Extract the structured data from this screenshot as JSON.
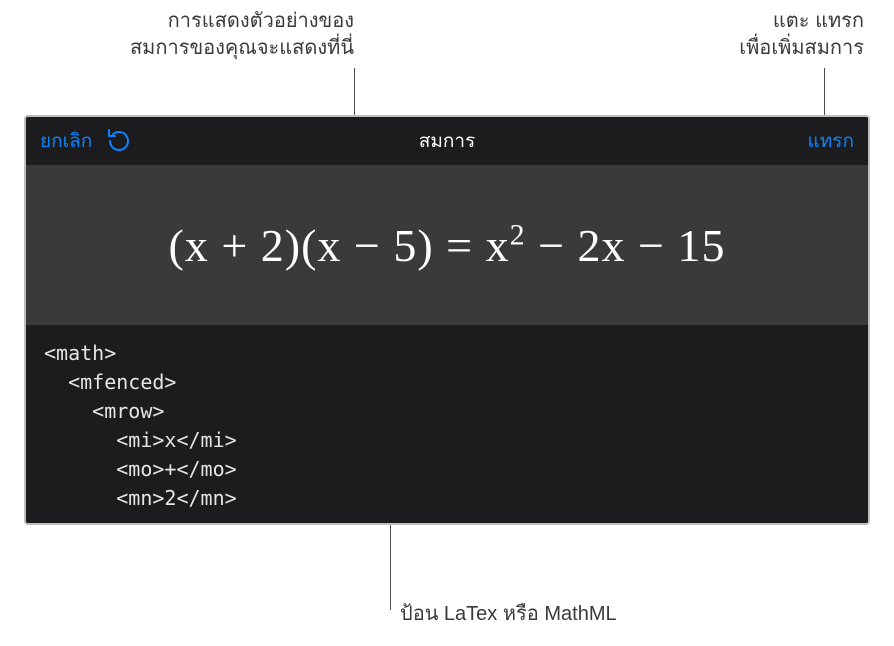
{
  "callouts": {
    "previewNote": "การแสดงตัวอย่างของ\nสมการของคุณจะแสดงที่นี่",
    "insertNote": "แตะ แทรก\nเพื่อเพิ่มสมการ",
    "inputNote": "ป้อน LaTex หรือ MathML"
  },
  "dialog": {
    "cancelLabel": "ยกเลิก",
    "titleLabel": "สมการ",
    "insertLabel": "แทรก",
    "undoIconName": "undo-icon"
  },
  "preview": {
    "equationHTML": "(x + 2)(x − 5) = x<sup>2</sup> − 2x − 15"
  },
  "code": {
    "text": "<math>\n  <mfenced>\n    <mrow>\n      <mi>x</mi>\n      <mo>+</mo>\n      <mn>2</mn>"
  },
  "colors": {
    "accent": "#0a84ff",
    "dialogBg": "#2c2c2e",
    "headerBg": "#1c1c1e",
    "previewBg": "#3a3a3c",
    "codeBg": "#1c1c1e",
    "textLight": "#ffffff",
    "calloutText": "#3a3a3a"
  }
}
